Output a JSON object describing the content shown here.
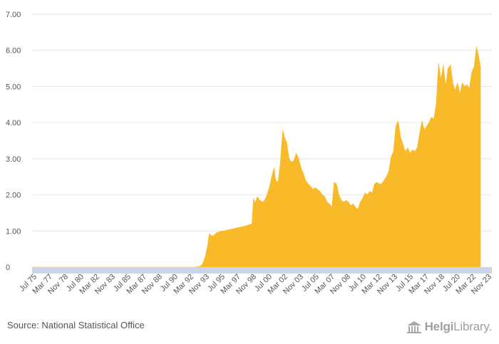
{
  "chart_data": {
    "type": "area",
    "ylim": [
      0,
      7
    ],
    "y_ticks": [
      "0",
      "1.00",
      "2.00",
      "3.00",
      "4.00",
      "5.00",
      "6.00",
      "7.00"
    ],
    "x_tick_labels": [
      "Jul 75",
      "Mar 77",
      "Nov 78",
      "Jul 80",
      "Mar 82",
      "Nov 83",
      "Jul 85",
      "Mar 87",
      "Nov 88",
      "Jul 90",
      "Mar 92",
      "Nov 93",
      "Jul 95",
      "Mar 97",
      "Nov 98",
      "Jul 00",
      "Mar 02",
      "Nov 03",
      "Jul 05",
      "Mar 07",
      "Nov 08",
      "Jul 10",
      "Mar 12",
      "Nov 13",
      "Jul 15",
      "Mar 17",
      "Nov 18",
      "Jul 20",
      "Mar 22",
      "Nov 23"
    ],
    "grid": true,
    "legend": "none",
    "series": [
      {
        "color": "#F9BA2A",
        "points": [
          [
            "1975-07",
            0.0
          ],
          [
            "1990-01",
            0.0
          ],
          [
            "1992-09",
            0.0
          ],
          [
            "1993-01",
            0.01
          ],
          [
            "1993-04",
            0.03
          ],
          [
            "1993-07",
            0.1
          ],
          [
            "1993-10",
            0.3
          ],
          [
            "1994-01",
            0.6
          ],
          [
            "1994-03",
            0.93
          ],
          [
            "1994-06",
            0.86
          ],
          [
            "1994-09",
            0.88
          ],
          [
            "1994-12",
            0.95
          ],
          [
            "1995-06",
            0.99
          ],
          [
            "1996-01",
            1.02
          ],
          [
            "1997-01",
            1.08
          ],
          [
            "1998-01",
            1.14
          ],
          [
            "1998-09",
            1.2
          ],
          [
            "1998-11",
            1.9
          ],
          [
            "1999-01",
            1.78
          ],
          [
            "1999-04",
            1.95
          ],
          [
            "1999-07",
            1.85
          ],
          [
            "1999-10",
            1.8
          ],
          [
            "2000-01",
            1.85
          ],
          [
            "2000-04",
            2.0
          ],
          [
            "2000-07",
            2.2
          ],
          [
            "2000-10",
            2.5
          ],
          [
            "2001-01",
            2.75
          ],
          [
            "2001-03",
            2.4
          ],
          [
            "2001-06",
            2.35
          ],
          [
            "2001-09",
            2.9
          ],
          [
            "2001-12",
            3.8
          ],
          [
            "2002-02",
            3.6
          ],
          [
            "2002-05",
            3.45
          ],
          [
            "2002-08",
            3.0
          ],
          [
            "2002-11",
            2.9
          ],
          [
            "2003-02",
            2.95
          ],
          [
            "2003-05",
            3.15
          ],
          [
            "2003-08",
            3.0
          ],
          [
            "2003-11",
            2.75
          ],
          [
            "2004-02",
            2.6
          ],
          [
            "2004-05",
            2.4
          ],
          [
            "2004-08",
            2.3
          ],
          [
            "2004-11",
            2.25
          ],
          [
            "2005-02",
            2.15
          ],
          [
            "2005-05",
            2.2
          ],
          [
            "2005-08",
            2.15
          ],
          [
            "2005-11",
            2.1
          ],
          [
            "2006-02",
            2.0
          ],
          [
            "2006-05",
            1.95
          ],
          [
            "2006-08",
            1.8
          ],
          [
            "2006-11",
            1.75
          ],
          [
            "2007-02",
            1.65
          ],
          [
            "2007-05",
            2.35
          ],
          [
            "2007-08",
            2.3
          ],
          [
            "2007-11",
            2.0
          ],
          [
            "2008-02",
            1.85
          ],
          [
            "2008-05",
            1.8
          ],
          [
            "2008-08",
            1.85
          ],
          [
            "2008-11",
            1.8
          ],
          [
            "2009-02",
            1.7
          ],
          [
            "2009-05",
            1.75
          ],
          [
            "2009-08",
            1.65
          ],
          [
            "2009-11",
            1.6
          ],
          [
            "2010-02",
            1.8
          ],
          [
            "2010-05",
            1.9
          ],
          [
            "2010-08",
            2.05
          ],
          [
            "2010-11",
            2.0
          ],
          [
            "2011-02",
            2.1
          ],
          [
            "2011-05",
            2.05
          ],
          [
            "2011-08",
            2.3
          ],
          [
            "2011-11",
            2.35
          ],
          [
            "2012-02",
            2.3
          ],
          [
            "2012-05",
            2.3
          ],
          [
            "2012-08",
            2.4
          ],
          [
            "2012-11",
            2.5
          ],
          [
            "2013-02",
            2.65
          ],
          [
            "2013-05",
            3.05
          ],
          [
            "2013-08",
            3.2
          ],
          [
            "2013-11",
            3.9
          ],
          [
            "2014-02",
            4.05
          ],
          [
            "2014-05",
            3.6
          ],
          [
            "2014-08",
            3.4
          ],
          [
            "2014-11",
            3.2
          ],
          [
            "2015-02",
            3.3
          ],
          [
            "2015-05",
            3.15
          ],
          [
            "2015-08",
            3.25
          ],
          [
            "2015-11",
            3.2
          ],
          [
            "2016-02",
            3.3
          ],
          [
            "2016-05",
            3.7
          ],
          [
            "2016-08",
            4.05
          ],
          [
            "2016-11",
            3.8
          ],
          [
            "2017-02",
            3.9
          ],
          [
            "2017-05",
            4.0
          ],
          [
            "2017-08",
            4.15
          ],
          [
            "2017-11",
            4.1
          ],
          [
            "2018-02",
            4.5
          ],
          [
            "2018-05",
            5.65
          ],
          [
            "2018-08",
            5.2
          ],
          [
            "2018-11",
            5.6
          ],
          [
            "2019-02",
            5.0
          ],
          [
            "2019-05",
            5.5
          ],
          [
            "2019-08",
            5.6
          ],
          [
            "2019-11",
            5.1
          ],
          [
            "2020-02",
            4.9
          ],
          [
            "2020-05",
            5.1
          ],
          [
            "2020-08",
            4.8
          ],
          [
            "2020-11",
            5.1
          ],
          [
            "2021-02",
            5.0
          ],
          [
            "2021-05",
            5.05
          ],
          [
            "2021-08",
            4.95
          ],
          [
            "2021-11",
            5.4
          ],
          [
            "2022-02",
            5.55
          ],
          [
            "2022-05",
            6.1
          ],
          [
            "2022-08",
            5.8
          ],
          [
            "2022-10",
            5.55
          ]
        ]
      }
    ]
  },
  "footer": {
    "source": "Source: National Statistical Office",
    "logo_text_bold": "Helgi",
    "logo_text_rest": "Library."
  },
  "colors": {
    "area": "#F9BA2A",
    "axis_band": "#CCD6EB",
    "grid": "#E6E6E6"
  }
}
